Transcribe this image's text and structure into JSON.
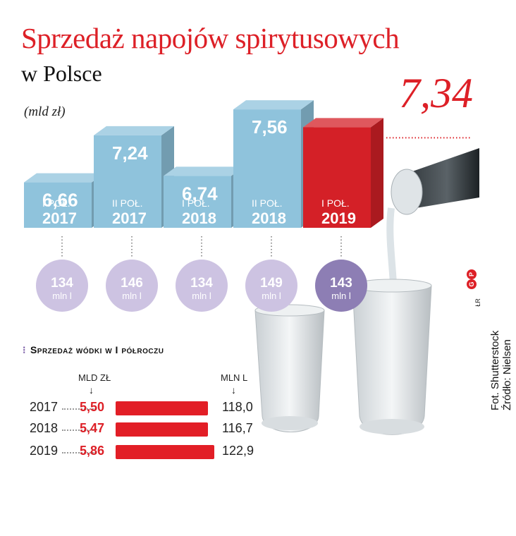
{
  "title": "Sprzedaż napojów spirytusowych",
  "subtitle": "w Polsce",
  "unit_label": "(mld zł)",
  "highlight_value": "7,34",
  "colors": {
    "bar": "#8fc3dc",
    "bar_highlight": "#d42027",
    "circle": "#cdc3e2",
    "circle_highlight": "#8d7eb4",
    "accent": "#dd2027"
  },
  "chart_data": [
    {
      "type": "bar",
      "categories": [
        "I POŁ. 2017",
        "II POŁ. 2017",
        "I POŁ. 2018",
        "II POŁ. 2018",
        "I POŁ. 2019"
      ],
      "period_labels": [
        "I POŁ.",
        "II POŁ.",
        "I POŁ.",
        "II POŁ.",
        "I POŁ."
      ],
      "year_labels": [
        "2017",
        "2017",
        "2018",
        "2018",
        "2019"
      ],
      "values": [
        6.66,
        7.24,
        6.74,
        7.56,
        7.34
      ],
      "value_labels": [
        "6,66",
        "7,24",
        "6,74",
        "7,56",
        ""
      ],
      "unit": "(mld zł)",
      "secondary_values": [
        134,
        146,
        134,
        149,
        143
      ],
      "secondary_unit": "mln l",
      "highlight_index": 4
    },
    {
      "type": "bar",
      "title": "Sprzedaż wódki w I półroczu",
      "col_left": "MLD ZŁ",
      "col_right": "MLN L",
      "categories": [
        "2017",
        "2018",
        "2019"
      ],
      "series": [
        {
          "name": "MLD ZŁ",
          "values": [
            5.5,
            5.47,
            5.86
          ],
          "labels": [
            "5,50",
            "5,47",
            "5,86"
          ]
        },
        {
          "name": "MLN L",
          "values": [
            118.0,
            116.7,
            122.9
          ],
          "labels": [
            "118,0",
            "116,7",
            "122,9"
          ]
        }
      ]
    }
  ],
  "credit_line1": "Fot. Shutterstock",
  "credit_line2": "Źródło: Nielsen",
  "logo": {
    "left": "G",
    "right": "P"
  },
  "author_initials": "ŁR"
}
